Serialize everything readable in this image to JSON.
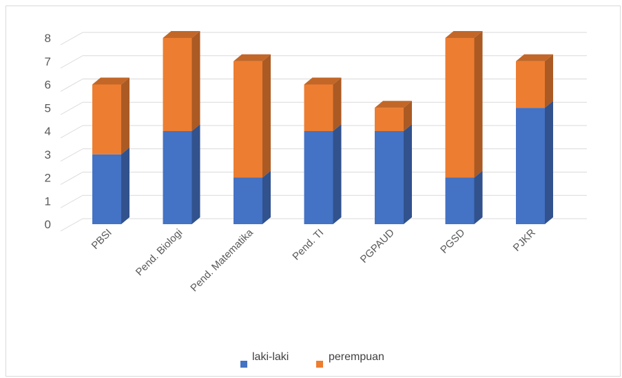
{
  "chart_data": {
    "type": "bar",
    "stacked": true,
    "three_d": true,
    "categories": [
      "PBSI",
      "Pend. Biologi",
      "Pend. Matematika",
      "Pend. TI",
      "PGPAUD",
      "PGSD",
      "PJKR"
    ],
    "series": [
      {
        "name": "laki-laki",
        "values": [
          3,
          4,
          2,
          4,
          4,
          2,
          5
        ],
        "color": "#4472c4"
      },
      {
        "name": "perempuan",
        "values": [
          3,
          4,
          5,
          2,
          1,
          6,
          2
        ],
        "color": "#ed7d31"
      }
    ],
    "ylim": [
      0,
      8
    ],
    "yticks": [
      0,
      1,
      2,
      3,
      4,
      5,
      6,
      7,
      8
    ],
    "grid": true,
    "legend_position": "bottom"
  }
}
